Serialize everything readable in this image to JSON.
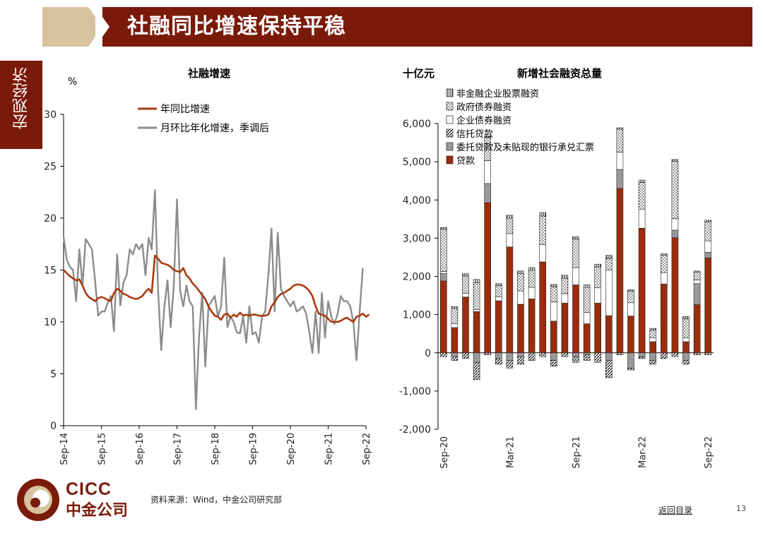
{
  "header": {
    "title": "社融同比增速保持平稳"
  },
  "side_tab": {
    "label": "宏观经济"
  },
  "footer": {
    "source": "资料来源：Wind，中金公司研究部",
    "back_link": "返回目录",
    "page_number": "13"
  },
  "logo": {
    "en": "CICC",
    "cn": "中金公司"
  },
  "colors": {
    "accent": "#7a1a0a",
    "tan": "#d8c3a0",
    "series_gray": "#8c8c8c",
    "loan": "#9b2d0c"
  },
  "chart_data": [
    {
      "type": "line",
      "title": "社融增速",
      "ylabel": "%",
      "ylim": [
        0,
        30
      ],
      "yticks": [
        "0",
        "5",
        "10",
        "15",
        "20",
        "25",
        "30"
      ],
      "xticks": [
        "Sep-14",
        "Sep-15",
        "Sep-16",
        "Sep-17",
        "Sep-18",
        "Sep-19",
        "Sep-20",
        "Sep-21",
        "Sep-22"
      ],
      "x_range": [
        "2014-09",
        "2022-09"
      ],
      "legend": "top-center",
      "series": [
        {
          "name": "年同比增速",
          "color": "#a83a10",
          "start": "2014-09",
          "values": [
            15.0,
            14.7,
            14.4,
            14.2,
            14.0,
            14.1,
            13.5,
            12.8,
            12.4,
            12.2,
            12.0,
            12.3,
            12.4,
            12.3,
            12.1,
            12.0,
            12.8,
            13.2,
            13.0,
            12.7,
            12.6,
            12.4,
            12.3,
            12.2,
            12.3,
            12.5,
            12.9,
            13.2,
            12.8,
            16.4,
            16.1,
            15.7,
            15.6,
            15.5,
            15.3,
            15.0,
            14.9,
            14.8,
            15.2,
            14.5,
            14.2,
            13.7,
            13.4,
            13.0,
            12.6,
            12.2,
            11.5,
            11.0,
            10.6,
            10.5,
            10.2,
            10.7,
            10.8,
            10.4,
            10.7,
            10.5,
            10.9,
            10.6,
            10.7,
            10.6,
            10.7,
            10.7,
            10.6,
            10.6,
            10.6,
            10.7,
            11.5,
            11.9,
            12.4,
            12.7,
            12.8,
            13.0,
            13.2,
            13.5,
            13.6,
            13.6,
            13.5,
            13.3,
            13.0,
            12.5,
            11.5,
            10.8,
            10.7,
            10.6,
            10.3,
            10.0,
            10.0,
            10.0,
            10.1,
            10.3,
            10.4,
            10.2,
            10.0,
            10.5,
            10.6,
            10.8,
            10.5,
            10.7
          ]
        },
        {
          "name": "月环比年化增速，季调后",
          "color": "#8c8c8c",
          "start": "2014-09",
          "values": [
            18.2,
            16.0,
            15.3,
            15.0,
            12.0,
            17.0,
            13.5,
            18.0,
            17.5,
            17.0,
            14.0,
            10.6,
            11.0,
            11.0,
            11.8,
            12.5,
            9.1,
            16.5,
            11.6,
            13.8,
            14.5,
            17.0,
            16.5,
            17.5,
            17.0,
            17.5,
            14.5,
            18.1,
            17.0,
            22.7,
            13.0,
            7.3,
            11.5,
            14.0,
            9.5,
            13.5,
            21.8,
            13.0,
            11.5,
            13.5,
            12.0,
            11.5,
            1.6,
            8.5,
            12.8,
            5.7,
            11.5,
            12.0,
            12.5,
            10.5,
            11.5,
            16.2,
            9.5,
            10.5,
            10.0,
            9.0,
            8.9,
            10.5,
            8.0,
            11.5,
            8.8,
            9.0,
            8.0,
            10.5,
            11.0,
            14.5,
            19.0,
            11.0,
            18.6,
            13.2,
            12.5,
            12.0,
            11.5,
            12.0,
            11.0,
            11.2,
            11.5,
            10.8,
            9.0,
            7.0,
            11.0,
            7.0,
            12.8,
            8.5,
            12.0,
            10.5,
            9.8,
            10.8,
            12.5,
            12.0,
            12.0,
            11.5,
            10.0,
            6.3,
            11.0,
            15.2
          ]
        }
      ]
    },
    {
      "type": "bar",
      "stacked": true,
      "title": "新增社会融资总量",
      "ylabel": "十亿元",
      "ylim": [
        -2000,
        6000
      ],
      "yticks": [
        "-2,000",
        "-1,000",
        "0",
        "1,000",
        "2,000",
        "3,000",
        "4,000",
        "5,000",
        "6,000"
      ],
      "categories": [
        "2020-09",
        "2020-10",
        "2020-11",
        "2020-12",
        "2021-01",
        "2021-02",
        "2021-03",
        "2021-04",
        "2021-05",
        "2021-06",
        "2021-07",
        "2021-08",
        "2021-09",
        "2021-10",
        "2021-11",
        "2021-12",
        "2022-01",
        "2022-02",
        "2022-03",
        "2022-04",
        "2022-05",
        "2022-06",
        "2022-07",
        "2022-08",
        "2022-09"
      ],
      "xtick_labels": [
        {
          "index": 0,
          "label": "Sep-20"
        },
        {
          "index": 6,
          "label": "Mar-21"
        },
        {
          "index": 12,
          "label": "Sep-21"
        },
        {
          "index": 18,
          "label": "Mar-22"
        },
        {
          "index": 24,
          "label": "Sep-22"
        }
      ],
      "legend": "top-left",
      "series": [
        {
          "name": "非金融企业股票融资",
          "pattern": "vertical",
          "values": [
            50,
            50,
            60,
            90,
            30,
            50,
            80,
            70,
            70,
            90,
            60,
            80,
            60,
            70,
            70,
            80,
            40,
            40,
            60,
            50,
            40,
            50,
            60,
            30,
            40
          ]
        },
        {
          "name": "政府债券融资",
          "pattern": "dots",
          "values": [
            1100,
            400,
            450,
            700,
            600,
            300,
            400,
            450,
            450,
            750,
            400,
            400,
            750,
            650,
            550,
            300,
            600,
            300,
            700,
            200,
            450,
            1500,
            500,
            200,
            500
          ]
        },
        {
          "name": "企业债券融资",
          "pattern": "white",
          "values": [
            50,
            100,
            100,
            50,
            600,
            100,
            350,
            350,
            300,
            450,
            500,
            250,
            450,
            300,
            400,
            1200,
            450,
            350,
            500,
            100,
            300,
            300,
            100,
            100,
            300
          ]
        },
        {
          "name": "信托贷款",
          "pattern": "diagonal",
          "values": [
            -100,
            -100,
            -150,
            -450,
            -50,
            -150,
            -200,
            -200,
            -200,
            -100,
            -150,
            -100,
            -150,
            -150,
            -250,
            -450,
            -50,
            -50,
            -50,
            -100,
            -150,
            -100,
            -100,
            -50,
            -50
          ]
        },
        {
          "name": "委托贷款及未贴现的银行承兑汇票",
          "pattern": "gray",
          "values": [
            200,
            -100,
            0,
            -250,
            500,
            -150,
            -200,
            -100,
            0,
            0,
            -200,
            0,
            -100,
            -50,
            0,
            -200,
            500,
            -400,
            -100,
            -200,
            0,
            200,
            -200,
            550,
            150
          ]
        },
        {
          "name": "贷款",
          "pattern": "loan",
          "values": [
            1880,
            660,
            1460,
            1080,
            3930,
            1360,
            2770,
            1270,
            1410,
            2380,
            830,
            1300,
            1780,
            760,
            1300,
            970,
            4300,
            960,
            3260,
            290,
            1800,
            3010,
            290,
            1260,
            2480
          ]
        }
      ]
    }
  ]
}
